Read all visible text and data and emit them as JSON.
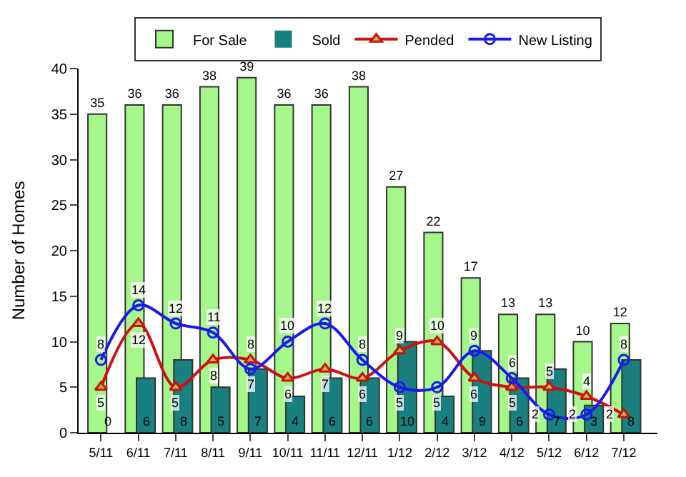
{
  "chart_data": {
    "type": "bar",
    "ylabel": "Number of Homes",
    "categories": [
      "5/11",
      "6/11",
      "7/11",
      "8/11",
      "9/11",
      "10/11",
      "11/11",
      "12/11",
      "1/12",
      "2/12",
      "3/12",
      "4/12",
      "5/12",
      "6/12",
      "7/12"
    ],
    "series": [
      {
        "name": "For Sale",
        "color": "#a6f78a",
        "values": [
          35,
          36,
          36,
          38,
          39,
          36,
          36,
          38,
          27,
          22,
          17,
          13,
          13,
          10,
          12
        ]
      },
      {
        "name": "Sold",
        "color": "#1a7f7f",
        "values": [
          0,
          6,
          8,
          5,
          7,
          4,
          6,
          6,
          10,
          4,
          9,
          6,
          7,
          3,
          8
        ]
      },
      {
        "name": "Pended",
        "type": "line",
        "color": "#cc1111",
        "marker": "triangle",
        "values": [
          5,
          12,
          5,
          8,
          8,
          6,
          7,
          6,
          9,
          10,
          6,
          5,
          5,
          4,
          2
        ]
      },
      {
        "name": "New Listing",
        "type": "line",
        "color": "#1a1aee",
        "marker": "circle",
        "values": [
          8,
          14,
          12,
          11,
          7,
          10,
          12,
          8,
          5,
          5,
          9,
          6,
          2,
          2,
          8
        ]
      }
    ],
    "ylim": [
      0,
      40
    ],
    "yticks": [
      0,
      5,
      10,
      15,
      20,
      25,
      30,
      35,
      40
    ],
    "grid": false,
    "legend": "top",
    "data_labels": true
  }
}
